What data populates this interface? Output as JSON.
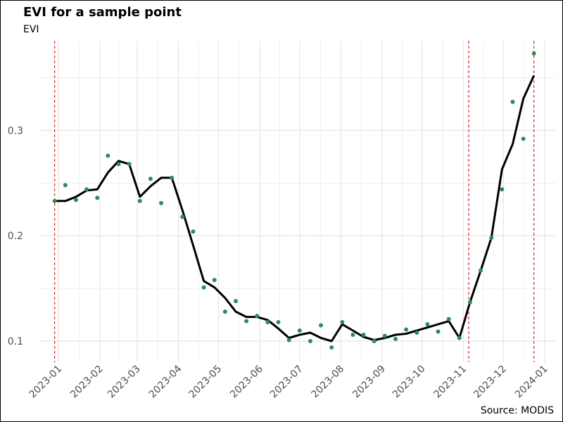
{
  "chart_data": {
    "type": "line",
    "title": "EVI for a sample point",
    "ylabel": "EVI",
    "xlabel": "",
    "caption": "Source: MODIS",
    "x_range": [
      "2022-12-17",
      "2024-01-09"
    ],
    "ylim": [
      0.08,
      0.385
    ],
    "y_ticks": [
      0.1,
      0.2,
      0.3
    ],
    "y_tick_labels": [
      "0.1",
      "0.2",
      "0.3"
    ],
    "x_ticks": [
      "2023-01-01",
      "2023-02-01",
      "2023-03-01",
      "2023-04-01",
      "2023-05-01",
      "2023-06-01",
      "2023-07-01",
      "2023-08-01",
      "2023-09-01",
      "2023-10-01",
      "2023-11-01",
      "2023-12-01",
      "2024-01-01"
    ],
    "x_tick_labels": [
      "2023-01",
      "2023-02",
      "2023-03",
      "2023-04",
      "2023-05",
      "2023-06",
      "2023-07",
      "2023-08",
      "2023-09",
      "2023-10",
      "2023-11",
      "2023-12",
      "2024-01"
    ],
    "grid": true,
    "colors": {
      "points": "#2e8b57",
      "line": "#000000",
      "vlines": "#cc0000",
      "grid": "#e5e5e5"
    },
    "vertical_lines": [
      "2022-12-29",
      "2023-11-05",
      "2023-12-24"
    ],
    "series": [
      {
        "kind": "points",
        "x": [
          "2022-12-29",
          "2023-01-06",
          "2023-01-14",
          "2023-01-22",
          "2023-01-30",
          "2023-02-07",
          "2023-02-15",
          "2023-02-23",
          "2023-03-03",
          "2023-03-11",
          "2023-03-19",
          "2023-03-27",
          "2023-04-04",
          "2023-04-12",
          "2023-04-20",
          "2023-04-28",
          "2023-05-06",
          "2023-05-14",
          "2023-05-22",
          "2023-05-30",
          "2023-06-07",
          "2023-06-15",
          "2023-06-23",
          "2023-07-01",
          "2023-07-09",
          "2023-07-17",
          "2023-07-25",
          "2023-08-02",
          "2023-08-10",
          "2023-08-18",
          "2023-08-26",
          "2023-09-03",
          "2023-09-11",
          "2023-09-19",
          "2023-09-27",
          "2023-10-05",
          "2023-10-13",
          "2023-10-21",
          "2023-10-29",
          "2023-11-06",
          "2023-11-14",
          "2023-11-22",
          "2023-11-30",
          "2023-12-08",
          "2023-12-16",
          "2023-12-24"
        ],
        "y": [
          0.233,
          0.248,
          0.234,
          0.244,
          0.236,
          0.276,
          0.268,
          0.268,
          0.233,
          0.254,
          0.231,
          0.255,
          0.218,
          0.204,
          0.151,
          0.158,
          0.128,
          0.138,
          0.119,
          0.124,
          0.118,
          0.118,
          0.101,
          0.11,
          0.1,
          0.115,
          0.094,
          0.118,
          0.106,
          0.106,
          0.1,
          0.105,
          0.102,
          0.111,
          0.108,
          0.116,
          0.109,
          0.121,
          0.103,
          0.137,
          0.167,
          0.198,
          0.244,
          0.327,
          0.292,
          0.373
        ]
      },
      {
        "kind": "line",
        "x": [
          "2022-12-29",
          "2023-01-06",
          "2023-01-14",
          "2023-01-22",
          "2023-01-30",
          "2023-02-07",
          "2023-02-15",
          "2023-02-23",
          "2023-03-03",
          "2023-03-11",
          "2023-03-19",
          "2023-03-27",
          "2023-04-04",
          "2023-04-12",
          "2023-04-20",
          "2023-04-28",
          "2023-05-06",
          "2023-05-14",
          "2023-05-22",
          "2023-05-30",
          "2023-06-07",
          "2023-06-15",
          "2023-06-23",
          "2023-07-01",
          "2023-07-09",
          "2023-07-17",
          "2023-07-25",
          "2023-08-02",
          "2023-08-10",
          "2023-08-18",
          "2023-08-26",
          "2023-09-03",
          "2023-09-11",
          "2023-09-19",
          "2023-09-27",
          "2023-10-05",
          "2023-10-13",
          "2023-10-21",
          "2023-10-29",
          "2023-11-06",
          "2023-11-14",
          "2023-11-22",
          "2023-11-30",
          "2023-12-08",
          "2023-12-16",
          "2023-12-24"
        ],
        "y": [
          0.233,
          0.233,
          0.237,
          0.243,
          0.244,
          0.26,
          0.271,
          0.268,
          0.237,
          0.247,
          0.255,
          0.255,
          0.224,
          0.191,
          0.157,
          0.151,
          0.141,
          0.128,
          0.123,
          0.123,
          0.12,
          0.112,
          0.103,
          0.106,
          0.108,
          0.103,
          0.1,
          0.116,
          0.11,
          0.104,
          0.101,
          0.103,
          0.106,
          0.107,
          0.11,
          0.113,
          0.116,
          0.119,
          0.103,
          0.137,
          0.167,
          0.198,
          0.263,
          0.287,
          0.33,
          0.352
        ]
      }
    ]
  }
}
